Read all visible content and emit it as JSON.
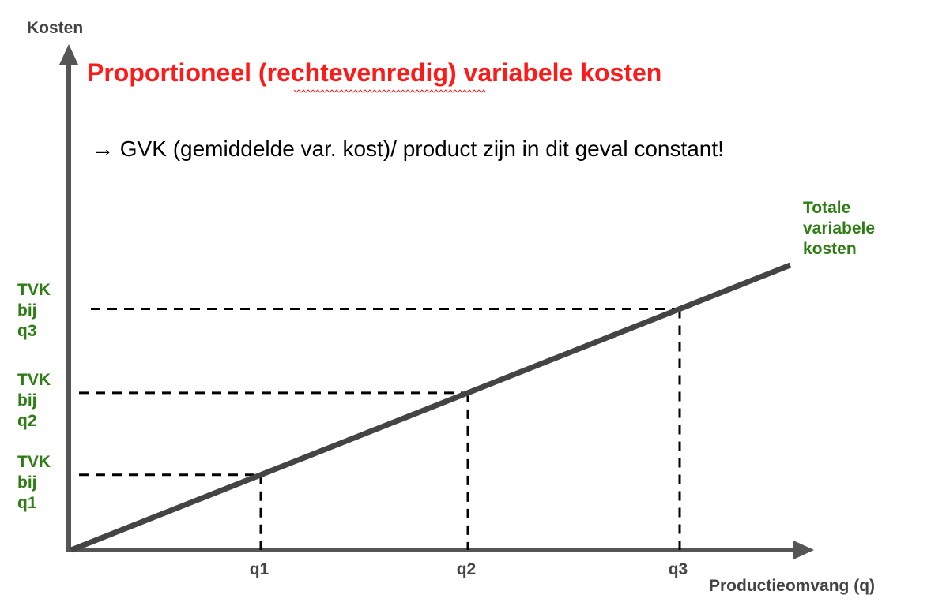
{
  "chart_data": {
    "type": "line",
    "title": "Proportioneel (rechtevenredig) variabele kosten",
    "subtitle": "→ GVK (gemiddelde var. kost)/ product zijn in dit geval constant!",
    "ylabel": "Kosten",
    "xlabel": "Productieomvang (q)",
    "categories": [
      "q1",
      "q2",
      "q3"
    ],
    "series": [
      {
        "name": "Totale variabele kosten",
        "name_lines": [
          "Totale",
          "variabele",
          "kosten"
        ]
      }
    ],
    "level_labels": [
      {
        "lines": [
          "TVK",
          "bij",
          "q1"
        ]
      },
      {
        "lines": [
          "TVK",
          "bij",
          "q2"
        ]
      },
      {
        "lines": [
          "TVK",
          "bij",
          "q3"
        ]
      }
    ],
    "grid": false,
    "colors": {
      "title": "#ff1a1a",
      "labels": "#2e7d14",
      "axis": "#555555",
      "line": "#444444",
      "text": "#000000"
    }
  }
}
